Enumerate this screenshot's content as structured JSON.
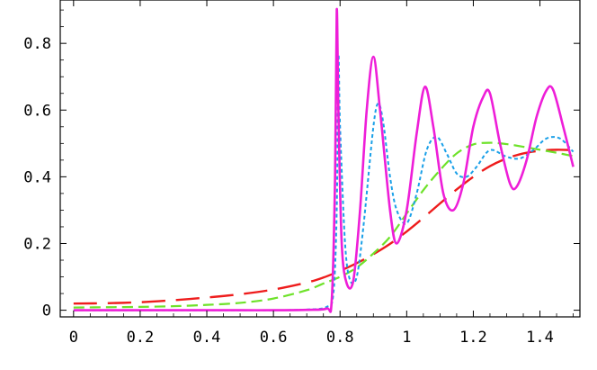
{
  "chart_data": {
    "type": "line",
    "title": "",
    "xlabel": "",
    "ylabel": "",
    "xlim": [
      -0.04,
      1.52
    ],
    "ylim": [
      -0.02,
      0.93
    ],
    "grid": false,
    "legend": "none",
    "x_ticks": [
      {
        "value": 0,
        "label": "0"
      },
      {
        "value": 0.2,
        "label": "0.2"
      },
      {
        "value": 0.4,
        "label": "0.4"
      },
      {
        "value": 0.6,
        "label": "0.6"
      },
      {
        "value": 0.8,
        "label": "0.8"
      },
      {
        "value": 1.0,
        "label": "1"
      },
      {
        "value": 1.2,
        "label": "1.2"
      },
      {
        "value": 1.4,
        "label": "1.4"
      }
    ],
    "y_ticks": [
      {
        "value": 0,
        "label": "0"
      },
      {
        "value": 0.2,
        "label": "0.2"
      },
      {
        "value": 0.4,
        "label": "0.4"
      },
      {
        "value": 0.6,
        "label": "0.6"
      },
      {
        "value": 0.8,
        "label": "0.8"
      }
    ],
    "series": [
      {
        "color": "#ee1c1c",
        "dash": "long-dash",
        "x": [
          0,
          0.1,
          0.2,
          0.3,
          0.4,
          0.5,
          0.6,
          0.7,
          0.75,
          0.8,
          0.85,
          0.9,
          0.95,
          1.0,
          1.05,
          1.1,
          1.15,
          1.2,
          1.25,
          1.3,
          1.35,
          1.4,
          1.45,
          1.5
        ],
        "y": [
          0.02,
          0.021,
          0.024,
          0.03,
          0.038,
          0.048,
          0.062,
          0.083,
          0.098,
          0.118,
          0.141,
          0.168,
          0.199,
          0.236,
          0.277,
          0.32,
          0.362,
          0.4,
          0.432,
          0.455,
          0.47,
          0.478,
          0.481,
          0.48
        ]
      },
      {
        "color": "#6ee22a",
        "dash": "medium-dash",
        "x": [
          0,
          0.1,
          0.2,
          0.3,
          0.4,
          0.5,
          0.6,
          0.7,
          0.75,
          0.8,
          0.85,
          0.9,
          0.95,
          1.0,
          1.05,
          1.1,
          1.15,
          1.2,
          1.25,
          1.3,
          1.35,
          1.4,
          1.45,
          1.5
        ],
        "y": [
          0.008,
          0.009,
          0.01,
          0.012,
          0.016,
          0.022,
          0.035,
          0.06,
          0.08,
          0.1,
          0.128,
          0.17,
          0.22,
          0.29,
          0.36,
          0.42,
          0.47,
          0.497,
          0.502,
          0.498,
          0.49,
          0.481,
          0.472,
          0.462
        ]
      },
      {
        "color": "#1aa0e8",
        "dash": "short-dash",
        "x": [
          0,
          0.1,
          0.2,
          0.3,
          0.4,
          0.5,
          0.6,
          0.7,
          0.76,
          0.78,
          0.79,
          0.795,
          0.8,
          0.815,
          0.83,
          0.85,
          0.87,
          0.9,
          0.915,
          0.93,
          0.95,
          0.97,
          1.0,
          1.03,
          1.06,
          1.09,
          1.12,
          1.15,
          1.18,
          1.21,
          1.25,
          1.3,
          1.34,
          1.38,
          1.42,
          1.46,
          1.5
        ],
        "y": [
          0,
          0,
          0,
          0,
          0,
          0,
          0,
          0.002,
          0.01,
          0.05,
          0.3,
          0.76,
          0.55,
          0.2,
          0.09,
          0.1,
          0.25,
          0.55,
          0.62,
          0.56,
          0.4,
          0.3,
          0.26,
          0.35,
          0.48,
          0.52,
          0.47,
          0.41,
          0.4,
          0.43,
          0.48,
          0.46,
          0.455,
          0.48,
          0.515,
          0.515,
          0.475
        ]
      },
      {
        "color": "#ee1ed8",
        "dash": "solid",
        "x": [
          0,
          0.1,
          0.2,
          0.3,
          0.4,
          0.5,
          0.6,
          0.7,
          0.76,
          0.775,
          0.785,
          0.79,
          0.795,
          0.805,
          0.82,
          0.84,
          0.86,
          0.88,
          0.9,
          0.92,
          0.95,
          0.97,
          1.0,
          1.03,
          1.055,
          1.08,
          1.11,
          1.14,
          1.17,
          1.2,
          1.23,
          1.25,
          1.28,
          1.31,
          1.33,
          1.36,
          1.39,
          1.42,
          1.44,
          1.47,
          1.5
        ],
        "y": [
          0,
          0,
          0,
          0,
          0,
          0,
          0,
          0.001,
          0.005,
          0.03,
          0.4,
          0.9,
          0.6,
          0.2,
          0.08,
          0.09,
          0.3,
          0.6,
          0.76,
          0.6,
          0.3,
          0.2,
          0.3,
          0.53,
          0.67,
          0.55,
          0.35,
          0.3,
          0.38,
          0.55,
          0.64,
          0.65,
          0.5,
          0.38,
          0.37,
          0.45,
          0.58,
          0.66,
          0.66,
          0.55,
          0.43
        ]
      }
    ]
  }
}
